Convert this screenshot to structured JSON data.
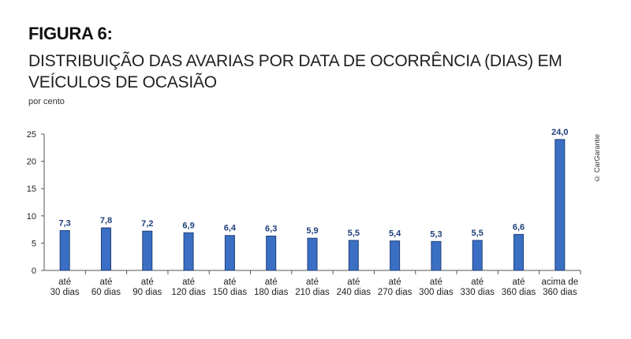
{
  "header": {
    "figure_label": "FIGURA 6:",
    "title": "DISTRIBUIÇÃO DAS AVARIAS POR DATA DE OCORRÊNCIA (DIAS) EM VEÍCULOS DE OCASIÃO",
    "unit": "por cento",
    "credit": "© CarGarantie"
  },
  "colors": {
    "bar_fill": "#3a6fc4",
    "bar_stroke": "#1f3f7a",
    "value_text": "#1f3f7a",
    "axis": "#555555"
  },
  "chart_data": {
    "type": "bar",
    "title": "DISTRIBUIÇÃO DAS AVARIAS POR DATA DE OCORRÊNCIA (DIAS) EM VEÍCULOS DE OCASIÃO",
    "xlabel": "",
    "ylabel": "por cento",
    "ylim": [
      0,
      25
    ],
    "yticks": [
      0,
      5,
      10,
      15,
      20,
      25
    ],
    "grid": false,
    "categories": [
      [
        "até",
        "30 dias"
      ],
      [
        "até",
        "60 dias"
      ],
      [
        "até",
        "90 dias"
      ],
      [
        "até",
        "120 dias"
      ],
      [
        "até",
        "150 dias"
      ],
      [
        "até",
        "180 dias"
      ],
      [
        "até",
        "210 dias"
      ],
      [
        "até",
        "240 dias"
      ],
      [
        "até",
        "270 dias"
      ],
      [
        "até",
        "300 dias"
      ],
      [
        "até",
        "330 dias"
      ],
      [
        "até",
        "360 dias"
      ],
      [
        "acima de",
        "360 dias"
      ]
    ],
    "values": [
      7.3,
      7.8,
      7.2,
      6.9,
      6.4,
      6.3,
      5.9,
      5.5,
      5.4,
      5.3,
      5.5,
      6.6,
      24.0
    ],
    "value_labels": [
      "7,3",
      "7,8",
      "7,2",
      "6,9",
      "6,4",
      "6,3",
      "5,9",
      "5,5",
      "5,4",
      "5,3",
      "5,5",
      "6,6",
      "24,0"
    ],
    "ytick_labels": [
      "0",
      "5",
      "10",
      "15",
      "20",
      "25"
    ]
  }
}
